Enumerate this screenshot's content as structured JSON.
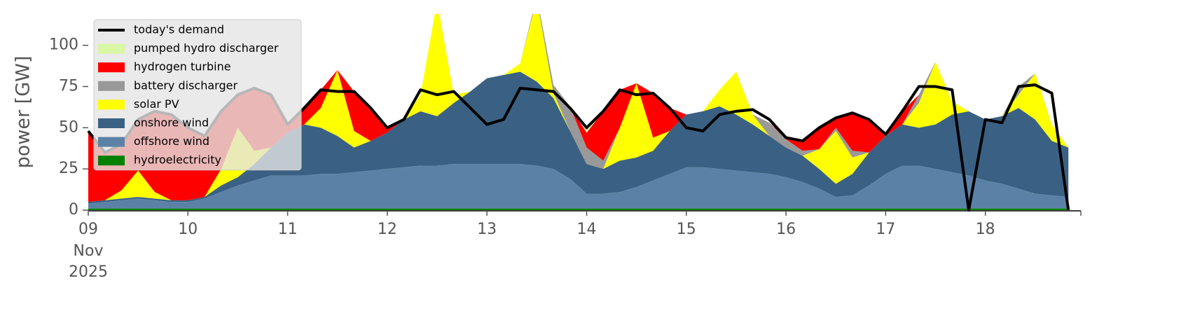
{
  "chart_data": {
    "type": "area",
    "stacked": true,
    "y_label": "power [GW]",
    "x": [
      9,
      9.1667,
      9.3333,
      9.5,
      9.6667,
      9.8333,
      10,
      10.1667,
      10.3333,
      10.5,
      10.6667,
      10.8333,
      11,
      11.1667,
      11.3333,
      11.5,
      11.6667,
      11.8333,
      12,
      12.1667,
      12.3333,
      12.5,
      12.6667,
      12.8333,
      13,
      13.1667,
      13.3333,
      13.5,
      13.6667,
      13.8333,
      14,
      14.1667,
      14.3333,
      14.5,
      14.6667,
      14.8333,
      15,
      15.1667,
      15.3333,
      15.5,
      15.6667,
      15.8333,
      16,
      16.1667,
      16.3333,
      16.5,
      16.6667,
      16.8333,
      17,
      17.1667,
      17.3333,
      17.5,
      17.6667,
      17.8333,
      18,
      18.1667,
      18.3333,
      18.5,
      18.6667,
      18.8333
    ],
    "xlim": [
      9,
      18.958
    ],
    "xticks": [
      {
        "value": 9,
        "label": "09"
      },
      10,
      11,
      12,
      13,
      14,
      15,
      16,
      17,
      18
    ],
    "xtick_sublabels": [
      "Nov",
      "2025"
    ],
    "ylim": [
      0,
      119
    ],
    "yticks": [
      0,
      25,
      50,
      75,
      100
    ],
    "legend": "upper left",
    "series": [
      {
        "name": "hydroelectricity",
        "color": "#008000",
        "values": [
          1,
          1,
          1,
          1,
          1,
          1,
          1,
          1,
          1,
          1,
          1,
          1,
          1,
          1,
          1,
          1,
          1,
          1,
          1,
          1,
          1,
          1,
          1,
          1,
          1,
          1,
          1,
          1,
          1,
          1,
          1,
          1,
          1,
          1,
          1,
          1,
          1,
          1,
          1,
          1,
          1,
          1,
          1,
          1,
          1,
          1,
          1,
          1,
          1,
          1,
          1,
          1,
          1,
          1,
          1,
          1,
          1,
          1,
          1,
          1
        ]
      },
      {
        "name": "offshore wind",
        "color": "#5b82a6",
        "values": [
          3,
          4,
          5,
          6,
          5,
          4,
          4,
          6,
          10,
          14,
          17,
          20,
          20,
          20,
          21,
          21,
          22,
          23,
          24,
          25,
          26,
          26,
          27,
          27,
          27,
          27,
          27,
          26,
          24,
          18,
          9,
          9,
          10,
          13,
          17,
          21,
          25,
          25,
          24,
          23,
          22,
          21,
          19,
          16,
          12,
          7,
          8,
          14,
          21,
          26,
          26,
          24,
          22,
          20,
          17,
          15,
          12,
          9,
          8,
          7
        ]
      },
      {
        "name": "onshore wind",
        "color": "#3a6183",
        "values": [
          1,
          1,
          1,
          1,
          1,
          1,
          1,
          1,
          4,
          5,
          10,
          17,
          26,
          31,
          28,
          23,
          15,
          18,
          22,
          29,
          33,
          30,
          37,
          44,
          52,
          54,
          56,
          51,
          43,
          29,
          18,
          15,
          19,
          18,
          18,
          26,
          32,
          34,
          38,
          34,
          29,
          23,
          18,
          16,
          12,
          8,
          13,
          20,
          23,
          25,
          23,
          27,
          35,
          39,
          37,
          41,
          49,
          45,
          33,
          30
        ]
      },
      {
        "name": "solar PV",
        "color": "#ffff00",
        "values": [
          0,
          0,
          5,
          16,
          4,
          0,
          0,
          0,
          10,
          30,
          8,
          0,
          0,
          0,
          12,
          40,
          10,
          0,
          0,
          0,
          10,
          70,
          5,
          0,
          0,
          0,
          5,
          50,
          3,
          0,
          0,
          0,
          20,
          45,
          8,
          0,
          0,
          0,
          10,
          26,
          6,
          0,
          0,
          0,
          12,
          32,
          10,
          0,
          0,
          0,
          15,
          38,
          8,
          0,
          0,
          0,
          8,
          28,
          10,
          0
        ]
      },
      {
        "name": "battery discharger",
        "color": "#999999",
        "values": [
          0,
          0,
          0,
          0,
          0,
          0,
          0,
          0,
          0,
          0,
          0,
          0,
          0,
          0,
          0,
          0,
          0,
          0,
          0,
          0,
          0,
          0,
          0,
          0,
          0,
          0,
          0,
          2,
          5,
          15,
          10,
          5,
          0,
          0,
          0,
          0,
          0,
          0,
          0,
          0,
          0,
          8,
          5,
          3,
          0,
          2,
          4,
          0,
          0,
          0,
          5,
          0,
          0,
          0,
          0,
          0,
          5,
          0,
          0,
          0
        ]
      },
      {
        "name": "hydrogen turbine",
        "color": "#ff0000",
        "values": [
          43,
          29,
          28,
          31,
          49,
          52,
          44,
          37,
          35,
          20,
          38,
          32,
          5,
          10,
          11,
          0,
          24,
          20,
          3,
          0,
          0,
          0,
          0,
          0,
          0,
          0,
          0,
          0,
          0,
          0,
          9,
          30,
          23,
          0,
          27,
          14,
          0,
          0,
          0,
          0,
          0,
          0,
          1,
          6,
          13,
          6,
          23,
          20,
          0,
          8,
          0,
          0,
          0,
          0,
          0,
          0,
          0,
          0,
          0,
          0
        ]
      },
      {
        "name": "pumped hydro discharger",
        "color": "#d9f7a4",
        "values": [
          0,
          0,
          0,
          0,
          0,
          0,
          0,
          0,
          0,
          0,
          0,
          0,
          0,
          0,
          0,
          0,
          0,
          0,
          0,
          0,
          0,
          0,
          0,
          0,
          0,
          0,
          0,
          0,
          0,
          0,
          3,
          0,
          0,
          0,
          0,
          0,
          0,
          0,
          0,
          0,
          0,
          0,
          0,
          0,
          0,
          0,
          0,
          0,
          0,
          0,
          0,
          0,
          0,
          0,
          0,
          0,
          0,
          0,
          0,
          0
        ]
      },
      {
        "name": "today's demand",
        "color": "#000000",
        "type": "line",
        "values": [
          48,
          35,
          40,
          55,
          60,
          58,
          50,
          45,
          60,
          70,
          74,
          70,
          52,
          62,
          73,
          72,
          72,
          62,
          50,
          55,
          73,
          70,
          72,
          62,
          52,
          55,
          74,
          73,
          72,
          62,
          50,
          60,
          73,
          70,
          71,
          62,
          50,
          48,
          58,
          60,
          61,
          55,
          44,
          42,
          50,
          56,
          59,
          55,
          46,
          60,
          75,
          75,
          73,
          0,
          55,
          53,
          75,
          76,
          71,
          0
        ]
      }
    ]
  }
}
